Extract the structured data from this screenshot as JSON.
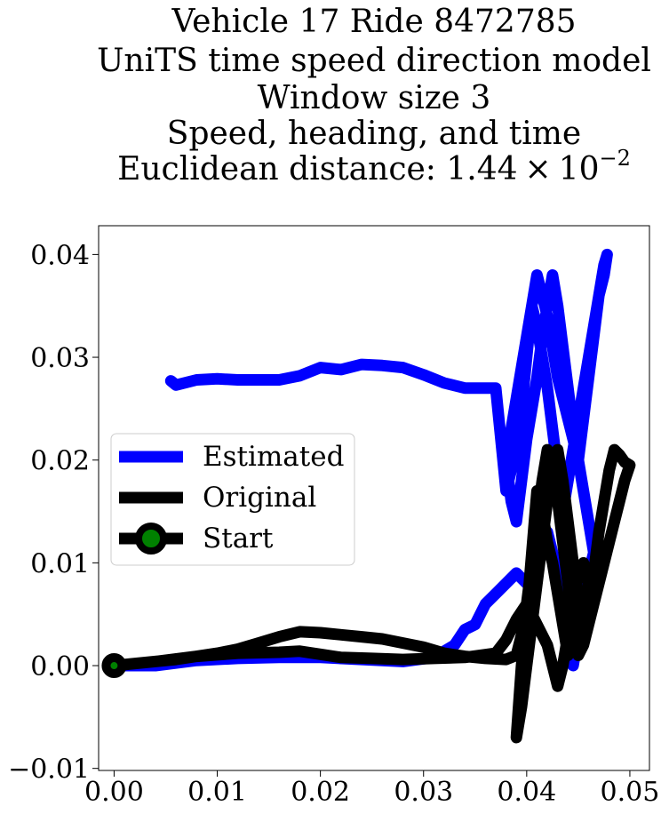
{
  "chart_data": {
    "type": "line",
    "title_lines": [
      "Vehicle 17 Ride 8472785",
      "UniTS time speed direction model",
      "Window size 3",
      "Speed, heading, and time"
    ],
    "title_metric_prefix": "Euclidean distance: ",
    "title_metric_mantissa": "1.44",
    "title_metric_times": "×",
    "title_metric_base": "10",
    "title_metric_exponent": "−2",
    "xlabel": "",
    "ylabel": "",
    "xlim": [
      -0.0015,
      0.0519
    ],
    "ylim": [
      -0.0102,
      0.0428
    ],
    "xticks": [
      0.0,
      0.01,
      0.02,
      0.03,
      0.04,
      0.05
    ],
    "xtick_labels": [
      "0.00",
      "0.01",
      "0.02",
      "0.03",
      "0.04",
      "0.05"
    ],
    "yticks": [
      -0.01,
      0.0,
      0.01,
      0.02,
      0.03,
      0.04
    ],
    "ytick_labels": [
      "−0.01",
      "0.00",
      "0.01",
      "0.02",
      "0.03",
      "0.04"
    ],
    "grid": false,
    "legend_position": "center-left",
    "series": [
      {
        "name": "Estimated",
        "color": "#0000ff",
        "x": [
          0.0,
          0.004,
          0.008,
          0.012,
          0.016,
          0.02,
          0.024,
          0.028,
          0.031,
          0.033,
          0.034,
          0.035,
          0.036,
          0.037,
          0.038,
          0.039,
          0.04,
          0.041,
          0.0415,
          0.042,
          0.0425,
          0.043,
          0.0435,
          0.044,
          0.0445,
          0.045,
          0.0455,
          0.046,
          0.0465,
          0.046,
          0.0455,
          0.045,
          0.0445,
          0.044,
          0.0435,
          0.043,
          0.0425,
          0.042,
          0.0415,
          0.041,
          0.0405,
          0.04,
          0.0395,
          0.039,
          0.0385,
          0.038,
          0.0385,
          0.039,
          0.0395,
          0.04,
          0.0405,
          0.041,
          0.0415,
          0.042,
          0.0425,
          0.043,
          0.0435,
          0.044,
          0.0445,
          0.045,
          0.0455,
          0.046,
          0.0465,
          0.047,
          0.0475,
          0.0478,
          0.0475,
          0.047,
          0.0465,
          0.046,
          0.0455,
          0.045,
          0.0445,
          0.044,
          0.0435,
          0.043,
          0.0425,
          0.042,
          0.0415,
          0.041,
          0.0405,
          0.04,
          0.0395,
          0.039,
          0.0385,
          0.038,
          0.037,
          0.036,
          0.034,
          0.032,
          0.03,
          0.028,
          0.026,
          0.024,
          0.022,
          0.02,
          0.018,
          0.016,
          0.014,
          0.012,
          0.01,
          0.008,
          0.006,
          0.0055
        ],
        "y": [
          0.0,
          0.0,
          0.0005,
          0.0007,
          0.0008,
          0.0008,
          0.0006,
          0.0004,
          0.0008,
          0.002,
          0.0035,
          0.004,
          0.006,
          0.007,
          0.008,
          0.009,
          0.008,
          0.01,
          0.012,
          0.013,
          0.011,
          0.009,
          0.006,
          0.003,
          0.0,
          0.003,
          0.006,
          0.009,
          0.011,
          0.014,
          0.017,
          0.02,
          0.022,
          0.024,
          0.026,
          0.028,
          0.031,
          0.034,
          0.036,
          0.038,
          0.035,
          0.032,
          0.029,
          0.026,
          0.023,
          0.02,
          0.016,
          0.014,
          0.018,
          0.022,
          0.025,
          0.028,
          0.032,
          0.035,
          0.038,
          0.035,
          0.031,
          0.027,
          0.023,
          0.02,
          0.024,
          0.028,
          0.032,
          0.036,
          0.039,
          0.04,
          0.038,
          0.036,
          0.033,
          0.03,
          0.027,
          0.024,
          0.021,
          0.018,
          0.015,
          0.019,
          0.023,
          0.027,
          0.03,
          0.033,
          0.035,
          0.03,
          0.025,
          0.022,
          0.019,
          0.017,
          0.027,
          0.027,
          0.027,
          0.0275,
          0.0283,
          0.029,
          0.0292,
          0.0293,
          0.0288,
          0.029,
          0.0282,
          0.0278,
          0.0278,
          0.0278,
          0.0279,
          0.0278,
          0.0273,
          0.0277
        ]
      },
      {
        "name": "Original",
        "color": "#000000",
        "x": [
          0.0,
          0.004,
          0.008,
          0.012,
          0.016,
          0.018,
          0.02,
          0.022,
          0.025,
          0.028,
          0.031,
          0.034,
          0.037,
          0.038,
          0.039,
          0.04,
          0.041,
          0.042,
          0.0425,
          0.043,
          0.0435,
          0.044,
          0.0445,
          0.045,
          0.0455,
          0.046,
          0.0455,
          0.045,
          0.0445,
          0.044,
          0.0435,
          0.043,
          0.0425,
          0.042,
          0.0415,
          0.041,
          0.0405,
          0.04,
          0.0395,
          0.039,
          0.0395,
          0.04,
          0.0405,
          0.041,
          0.0415,
          0.042,
          0.0425,
          0.043,
          0.0435,
          0.044,
          0.0445,
          0.045,
          0.0455,
          0.046,
          0.0465,
          0.047,
          0.0475,
          0.048,
          0.0485,
          0.049,
          0.0495,
          0.05,
          0.0495,
          0.049,
          0.0485,
          0.048,
          0.0475,
          0.047,
          0.0465,
          0.046,
          0.0455,
          0.045,
          0.0445,
          0.044,
          0.0435,
          0.043,
          0.0425,
          0.042,
          0.0415,
          0.041,
          0.0405,
          0.04,
          0.0395,
          0.039,
          0.038,
          0.036,
          0.034,
          0.032,
          0.03,
          0.028,
          0.026,
          0.024,
          0.022,
          0.02,
          0.018,
          0.016,
          0.014,
          0.012,
          0.01,
          0.008,
          0.006,
          0.004,
          0.002,
          0.0
        ],
        "y": [
          0.0,
          0.0004,
          0.0009,
          0.0012,
          0.0013,
          0.0014,
          0.0011,
          0.0008,
          0.0007,
          0.0006,
          0.0007,
          0.0008,
          0.0012,
          0.0025,
          0.0045,
          0.006,
          0.004,
          0.002,
          0.0,
          -0.002,
          0.0,
          0.003,
          0.006,
          0.009,
          0.01,
          0.008,
          0.006,
          0.004,
          0.002,
          0.001,
          0.004,
          0.007,
          0.01,
          0.012,
          0.015,
          0.017,
          0.011,
          0.005,
          0.0,
          -0.007,
          -0.004,
          0.0,
          0.004,
          0.008,
          0.012,
          0.016,
          0.019,
          0.021,
          0.018,
          0.014,
          0.01,
          0.006,
          0.002,
          0.005,
          0.009,
          0.013,
          0.016,
          0.019,
          0.021,
          0.0205,
          0.0198,
          0.0195,
          0.018,
          0.016,
          0.014,
          0.012,
          0.01,
          0.008,
          0.006,
          0.004,
          0.002,
          0.001,
          0.004,
          0.008,
          0.012,
          0.016,
          0.019,
          0.021,
          0.018,
          0.014,
          0.01,
          0.006,
          0.003,
          0.001,
          0.0006,
          0.0007,
          0.0009,
          0.0012,
          0.0018,
          0.0022,
          0.0026,
          0.0028,
          0.003,
          0.0032,
          0.0033,
          0.0028,
          0.0022,
          0.0016,
          0.0012,
          0.0009,
          0.0006,
          0.0004,
          0.0002,
          0.0
        ]
      }
    ],
    "start_point": {
      "name": "Start",
      "x": 0.0,
      "y": 0.0,
      "line_color": "#000000",
      "marker_color": "#008000"
    }
  }
}
